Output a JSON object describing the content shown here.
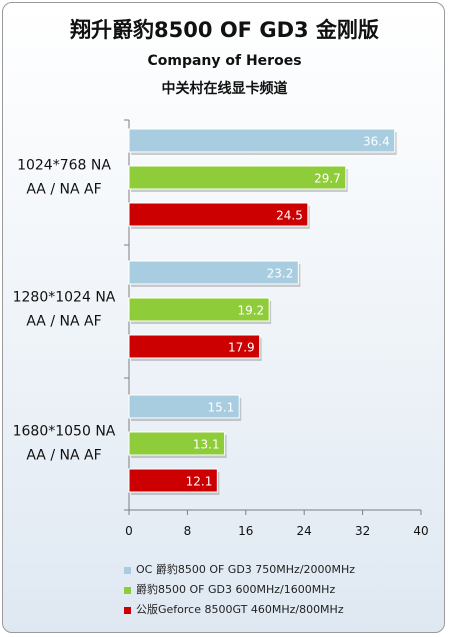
{
  "title": "翔升爵豹8500 OF GD3 金刚版",
  "subtitle": "Company of Heroes",
  "subtitle2": "中关村在线显卡频道",
  "colors": {
    "series": [
      "#a8cde0",
      "#8ecc3a",
      "#cc0000"
    ],
    "axis": "#7f7f7f"
  },
  "chart_data": {
    "type": "bar",
    "orientation": "horizontal",
    "categories": [
      "1024*768 NA\nAA / NA AF",
      "1280*1024 NA\nAA / NA AF",
      "1680*1050 NA\nAA / NA AF"
    ],
    "category_lines": [
      [
        "1024*768 NA",
        "AA / NA AF"
      ],
      [
        "1280*1024 NA",
        "AA / NA AF"
      ],
      [
        "1680*1050 NA",
        "AA / NA AF"
      ]
    ],
    "series": [
      {
        "name": "OC 爵豹8500 OF GD3 750MHz/2000MHz",
        "values": [
          36.4,
          23.2,
          15.1
        ]
      },
      {
        "name": "爵豹8500 OF GD3 600MHz/1600MHz",
        "values": [
          29.7,
          19.2,
          13.1
        ]
      },
      {
        "name": "公版Geforce 8500GT 460MHz/800MHz",
        "values": [
          24.5,
          17.9,
          12.1
        ]
      }
    ],
    "xlim": [
      0,
      40
    ],
    "xticks": [
      "0",
      "8",
      "16",
      "24",
      "32",
      "40"
    ],
    "grid": false,
    "legend_position": "bottom"
  }
}
